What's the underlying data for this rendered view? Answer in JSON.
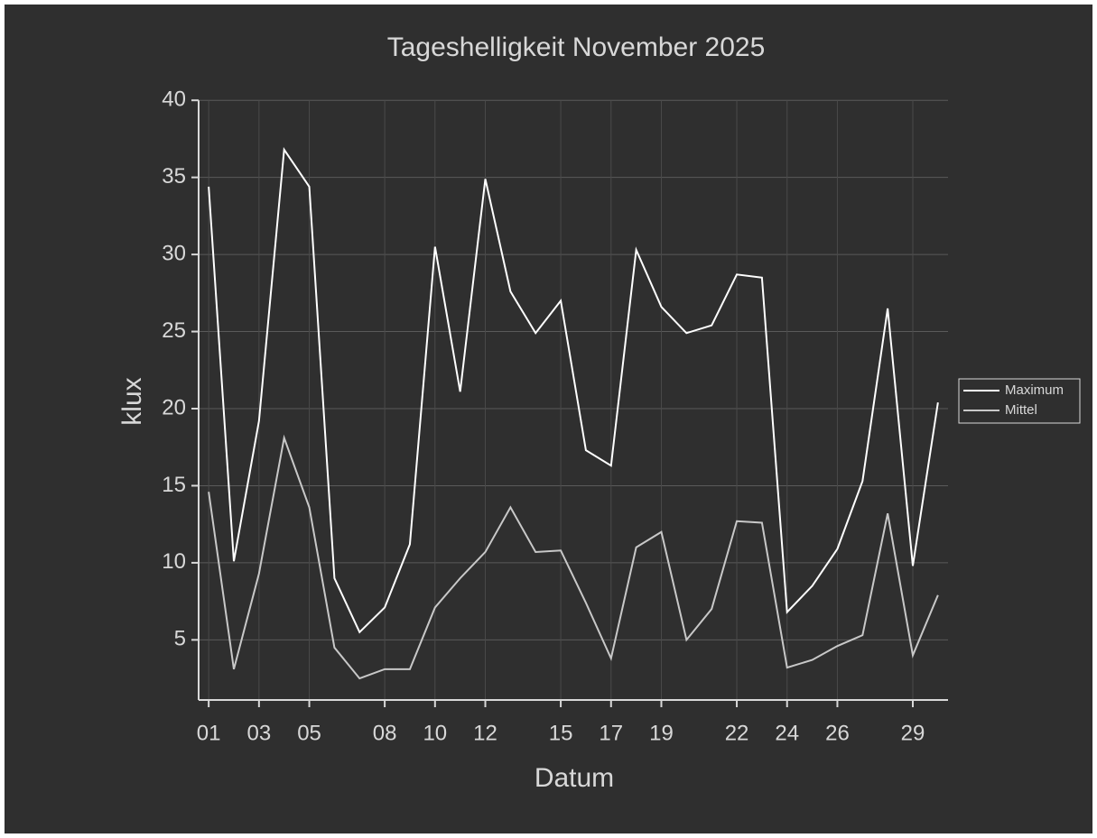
{
  "chart_data": {
    "type": "line",
    "title": "Tageshelligkeit November 2025",
    "x_label": "Datum",
    "y_label": "klux",
    "x": [
      1,
      2,
      3,
      4,
      5,
      6,
      7,
      8,
      9,
      10,
      11,
      12,
      13,
      14,
      15,
      16,
      17,
      18,
      19,
      20,
      21,
      22,
      23,
      24,
      25,
      26,
      27,
      28,
      29,
      30
    ],
    "series": [
      {
        "name": "Maximum",
        "color": "#ffffff",
        "values": [
          34.4,
          10.1,
          19.2,
          36.8,
          34.4,
          9.0,
          5.5,
          7.1,
          11.2,
          30.5,
          21.1,
          34.9,
          27.6,
          24.9,
          27.0,
          17.3,
          16.3,
          30.3,
          26.6,
          24.9,
          25.4,
          28.7,
          28.5,
          6.8,
          8.5,
          10.9,
          15.3,
          26.5,
          9.8,
          20.4
        ]
      },
      {
        "name": "Mittel",
        "color": "#c8c8c8",
        "values": [
          14.6,
          3.1,
          9.3,
          18.1,
          13.6,
          4.5,
          2.5,
          3.1,
          3.1,
          7.1,
          9.0,
          10.7,
          13.6,
          10.7,
          10.8,
          7.4,
          3.8,
          11.0,
          12.0,
          5.0,
          7.0,
          12.7,
          12.6,
          3.2,
          3.7,
          4.6,
          5.3,
          13.2,
          4.0,
          7.9
        ]
      }
    ],
    "xlim": [
      0.6,
      30.4
    ],
    "ylim": [
      1.1,
      40
    ],
    "xticks": [
      {
        "value": 1,
        "label": "01"
      },
      {
        "value": 3,
        "label": "03"
      },
      {
        "value": 5,
        "label": "05"
      },
      {
        "value": 8,
        "label": "08"
      },
      {
        "value": 10,
        "label": "10"
      },
      {
        "value": 12,
        "label": "12"
      },
      {
        "value": 15,
        "label": "15"
      },
      {
        "value": 17,
        "label": "17"
      },
      {
        "value": 19,
        "label": "19"
      },
      {
        "value": 22,
        "label": "22"
      },
      {
        "value": 24,
        "label": "24"
      },
      {
        "value": 26,
        "label": "26"
      },
      {
        "value": 29,
        "label": "29"
      }
    ],
    "yticks": [
      5,
      10,
      15,
      20,
      25,
      30,
      35,
      40
    ],
    "grid": true,
    "legend": "right"
  }
}
